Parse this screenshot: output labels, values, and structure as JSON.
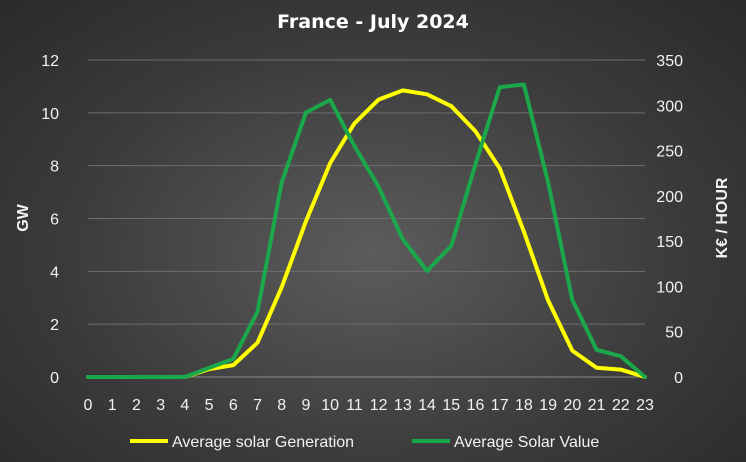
{
  "chart_data": {
    "type": "line",
    "title": "France - July 2024",
    "x": [
      0,
      1,
      2,
      3,
      4,
      5,
      6,
      7,
      8,
      9,
      10,
      11,
      12,
      13,
      14,
      15,
      16,
      17,
      18,
      19,
      20,
      21,
      22,
      23
    ],
    "y_left_label": "GW",
    "y_right_label": "K€ / HOUR",
    "y_left_lim": [
      0,
      12
    ],
    "y_left_ticks": [
      0,
      2,
      4,
      6,
      8,
      10,
      12
    ],
    "y_right_lim": [
      0,
      350
    ],
    "y_right_ticks": [
      0,
      50,
      100,
      150,
      200,
      250,
      300,
      350
    ],
    "grid": true,
    "legend_position": "bottom",
    "series": [
      {
        "name": "Average solar Generation",
        "axis": "left",
        "color": "#ffff00",
        "values": [
          0,
          0,
          0,
          0,
          0,
          0.3,
          0.45,
          1.3,
          3.4,
          5.9,
          8.1,
          9.6,
          10.5,
          10.85,
          10.7,
          10.25,
          9.3,
          7.9,
          5.5,
          2.9,
          1.0,
          0.35,
          0.28,
          0
        ]
      },
      {
        "name": "Average Solar Value",
        "axis": "right",
        "color": "#1aa84a",
        "values": [
          0,
          0,
          0,
          0,
          0,
          10,
          20,
          72,
          215,
          292,
          306,
          255,
          210,
          152,
          117,
          145,
          235,
          320,
          323,
          215,
          85,
          30,
          23,
          0
        ]
      }
    ]
  }
}
